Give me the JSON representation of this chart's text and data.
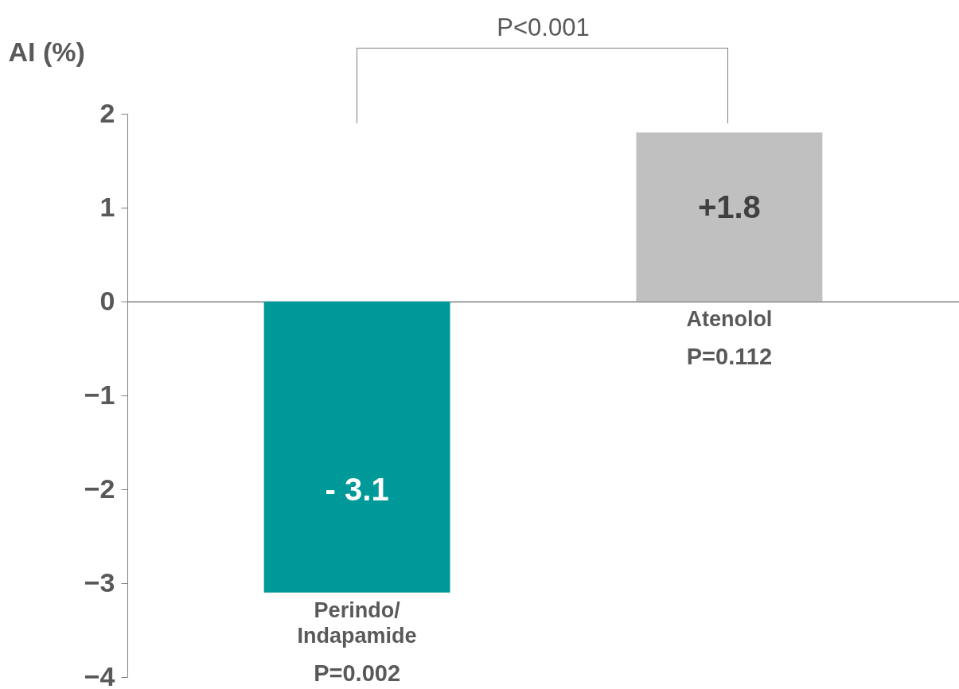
{
  "chart_data": {
    "type": "bar",
    "ylabel": "AI (%)",
    "categories": [
      "Perindo/\nIndapamide",
      "Atenolol"
    ],
    "values": [
      -3.1,
      1.8
    ],
    "colors": [
      "#009999",
      "#c0c0c0"
    ],
    "value_labels": [
      "- 3.1",
      "+1.8"
    ],
    "ylim": [
      -4,
      2
    ],
    "yticks": [
      -4,
      -3,
      -2,
      -1,
      0,
      1,
      2
    ],
    "annotations": [
      "P<0.001",
      "P=0.002",
      "P=0.112"
    ]
  }
}
